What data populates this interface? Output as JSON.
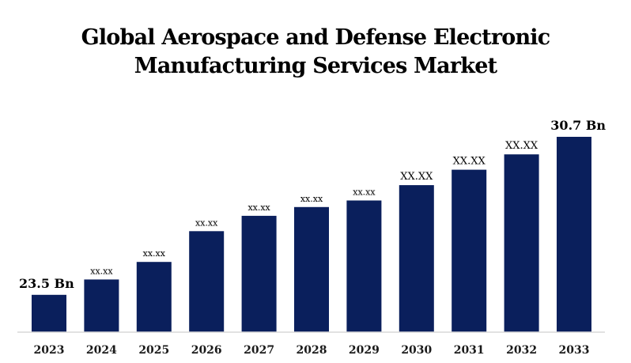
{
  "chart_data": {
    "type": "bar",
    "title_lines": [
      "Global Aerospace and Defense Electronic",
      "Manufacturing Services Market"
    ],
    "xlabel": "",
    "ylabel": "",
    "categories": [
      "2023",
      "2024",
      "2025",
      "2026",
      "2027",
      "2028",
      "2029",
      "2030",
      "2031",
      "2032",
      "2033"
    ],
    "values": [
      23.5,
      24.2,
      25.0,
      26.4,
      27.1,
      27.5,
      27.8,
      28.5,
      29.2,
      29.9,
      30.7
    ],
    "data_labels": [
      "23.5 Bn",
      "xx.xx",
      "xx.xx",
      "xx.xx",
      "xx.xx",
      "xx.xx",
      "xx.xx",
      "XX.XX",
      "XX.XX",
      "XX.XX",
      "30.7 Bn"
    ],
    "ylim": [
      21.8,
      30.7
    ],
    "grid": false,
    "legend": "none",
    "bar_color": "#0a1f5c"
  }
}
